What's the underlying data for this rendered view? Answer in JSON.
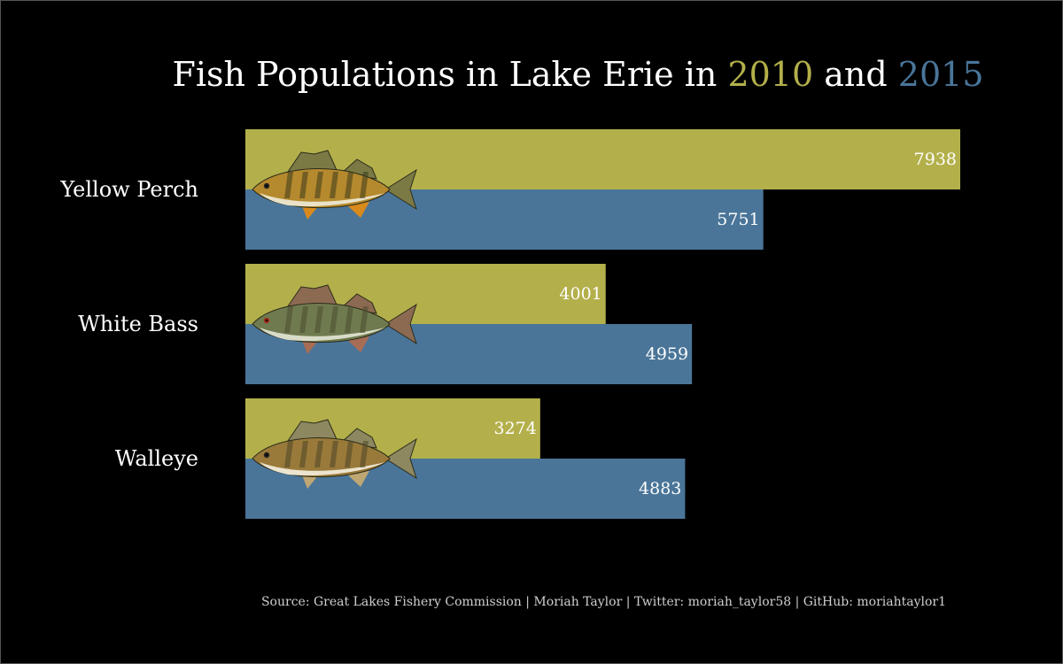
{
  "title": {
    "prefix": "Fish Populations in Lake Erie in ",
    "year1": "2010",
    "middle": " and ",
    "year2": "2015"
  },
  "source": "Source: Great Lakes Fishery Commission | Moriah Taylor | Twitter: moriah_taylor58 | GitHub: moriahtaylor1",
  "colors": {
    "background": "#000000",
    "series_2010": "#b3b04b",
    "series_2015": "#4a7599",
    "text": "#ffffff"
  },
  "chart_data": {
    "type": "bar",
    "orientation": "horizontal",
    "categories": [
      "Yellow Perch",
      "White Bass",
      "Walleye"
    ],
    "series": [
      {
        "name": "2010",
        "values": [
          7938,
          4001,
          3274
        ]
      },
      {
        "name": "2015",
        "values": [
          5751,
          4959,
          4883
        ]
      }
    ],
    "xlim": [
      0,
      8000
    ],
    "grid": false,
    "legend": "in title",
    "icons": [
      "yellow-perch-fish-icon",
      "white-bass-fish-icon",
      "walleye-fish-icon"
    ]
  }
}
